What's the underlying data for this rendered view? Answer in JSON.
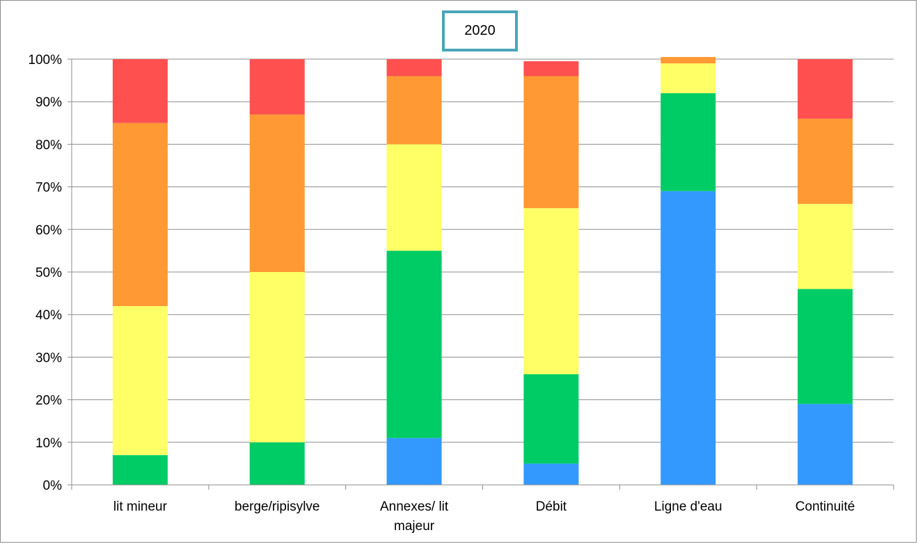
{
  "chart_data": {
    "type": "bar",
    "stacked": true,
    "percent": true,
    "title": "2020",
    "categories": [
      "lit mineur",
      "berge/ripisylve",
      "Annexes/ lit majeur",
      "Débit",
      "Ligne d'eau",
      "Continuité"
    ],
    "series": [
      {
        "color": "#3399ff",
        "values": [
          0,
          0,
          11,
          5,
          69,
          19
        ]
      },
      {
        "color": "#00cc66",
        "values": [
          7,
          10,
          44,
          21,
          23,
          27
        ]
      },
      {
        "color": "#ffff66",
        "values": [
          35,
          40,
          25,
          39,
          7,
          20
        ]
      },
      {
        "color": "#ff9933",
        "values": [
          43,
          37,
          16,
          31,
          1.5,
          20
        ]
      },
      {
        "color": "#ff5050",
        "values": [
          15,
          13,
          4,
          3.5,
          0,
          14
        ]
      }
    ],
    "ylim": [
      0,
      100
    ],
    "yticks": [
      "0%",
      "10%",
      "20%",
      "30%",
      "40%",
      "50%",
      "60%",
      "70%",
      "80%",
      "90%",
      "100%"
    ],
    "grid": true,
    "legend": "none",
    "xlabel": "",
    "ylabel": ""
  }
}
